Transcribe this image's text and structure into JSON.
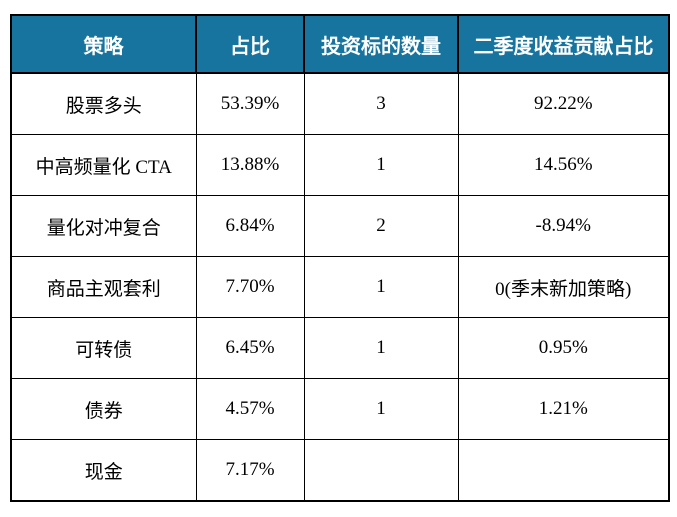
{
  "chart_data": {
    "type": "table",
    "title": "",
    "columns": [
      "策略",
      "占比",
      "投资标的数量",
      "二季度收益贡献占比"
    ],
    "rows": [
      [
        "股票多头",
        "53.39%",
        "3",
        "92.22%"
      ],
      [
        "中高频量化 CTA",
        "13.88%",
        "1",
        "14.56%"
      ],
      [
        "量化对冲复合",
        "6.84%",
        "2",
        "-8.94%"
      ],
      [
        "商品主观套利",
        "7.70%",
        "1",
        "0(季末新加策略)"
      ],
      [
        "可转债",
        "6.45%",
        "1",
        "0.95%"
      ],
      [
        "债券",
        "4.57%",
        "1",
        "1.21%"
      ],
      [
        "现金",
        "7.17%",
        "",
        ""
      ]
    ]
  },
  "colors": {
    "header_bg": "#16749E",
    "header_text": "#FFFFFF",
    "body_text": "#000000",
    "border": "#000000",
    "page_bg": "#FFFFFF"
  }
}
